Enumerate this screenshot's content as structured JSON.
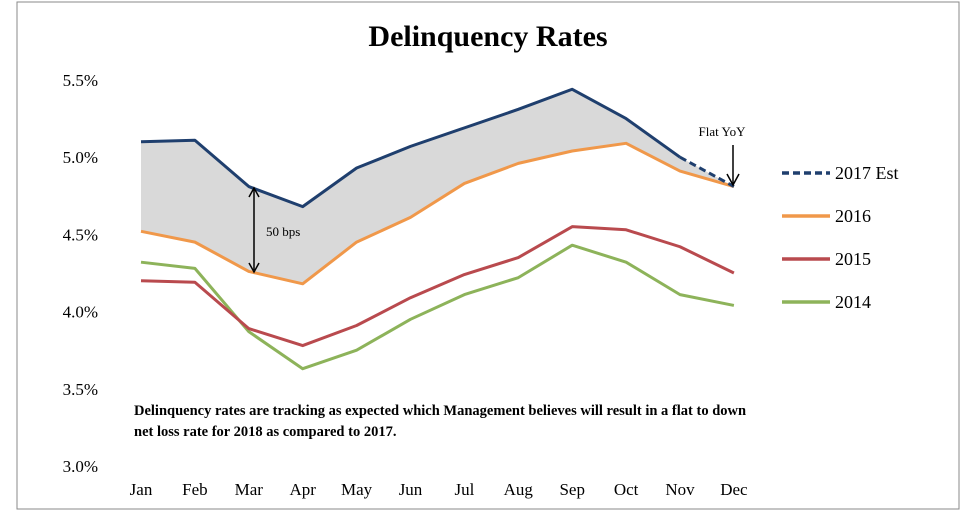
{
  "chart_data": {
    "type": "line",
    "title": "Delinquency Rates",
    "xlabel": "",
    "ylabel": "",
    "categories": [
      "Jan",
      "Feb",
      "Mar",
      "Apr",
      "May",
      "Jun",
      "Jul",
      "Aug",
      "Sep",
      "Oct",
      "Nov",
      "Dec"
    ],
    "ylim": [
      3.0,
      5.5
    ],
    "yticks": [
      "3.0%",
      "3.5%",
      "4.0%",
      "4.5%",
      "5.0%",
      "5.5%"
    ],
    "grid": false,
    "legend_position": "right",
    "series": [
      {
        "name": "2017 Est",
        "color": "#1f3f6e",
        "dashed_from": "Nov",
        "values": [
          5.1,
          5.11,
          4.81,
          4.68,
          4.93,
          5.07,
          5.19,
          5.31,
          5.44,
          5.25,
          5.0,
          4.81
        ]
      },
      {
        "name": "2016",
        "color": "#f0984a",
        "values": [
          4.52,
          4.45,
          4.26,
          4.18,
          4.45,
          4.61,
          4.83,
          4.96,
          5.04,
          5.09,
          4.91,
          4.81
        ]
      },
      {
        "name": "2015",
        "color": "#b94a4e",
        "values": [
          4.2,
          4.19,
          3.89,
          3.78,
          3.91,
          4.09,
          4.24,
          4.35,
          4.55,
          4.53,
          4.42,
          4.25
        ]
      },
      {
        "name": "2014",
        "color": "#8db35a",
        "values": [
          4.32,
          4.28,
          3.87,
          3.63,
          3.75,
          3.95,
          4.11,
          4.22,
          4.43,
          4.32,
          4.11,
          4.04
        ]
      }
    ],
    "shaded_between": [
      "2017 Est",
      "2016"
    ],
    "shade_color": "#d9d9d9",
    "annotations": {
      "bps_label": "50 bps",
      "flat_label": "Flat YoY",
      "note_line1": "Delinquency rates are tracking as expected which Management believes will result in a flat to down",
      "note_line2": "net loss rate for 2018 as compared to 2017."
    }
  }
}
